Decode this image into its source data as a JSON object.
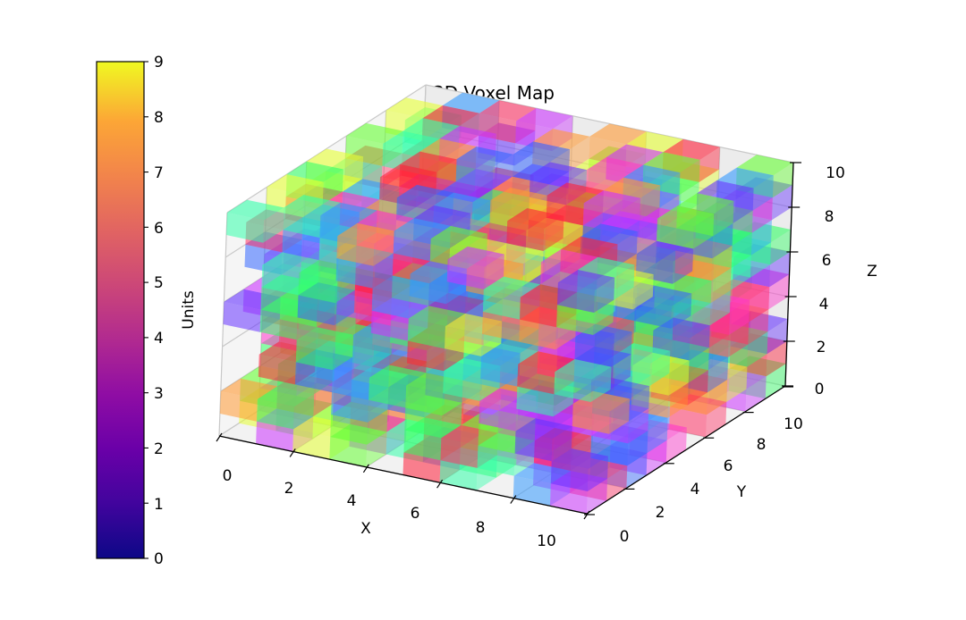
{
  "chart_data": {
    "type": "3d-voxel",
    "title": "3D Voxel Map",
    "xlabel": "X",
    "ylabel": "Y",
    "zlabel": "Z",
    "xlim": [
      0,
      10
    ],
    "ylim": [
      0,
      10
    ],
    "zlim": [
      0,
      10
    ],
    "xticks": [
      "0",
      "2",
      "4",
      "6",
      "8",
      "10"
    ],
    "yticks": [
      "0",
      "2",
      "4",
      "6",
      "8",
      "10"
    ],
    "zticks": [
      "0",
      "2",
      "4",
      "6",
      "8",
      "10"
    ],
    "grid_size": [
      10,
      10,
      10
    ],
    "voxel_alpha": 0.6,
    "voxel_colors": "random hsv-like per voxel (red, green, blue, magenta, yellow, orange, cyan)",
    "colorbar": {
      "label": "Units",
      "cmap": "plasma",
      "range": [
        0,
        9
      ],
      "ticks": [
        "0",
        "1",
        "2",
        "3",
        "4",
        "5",
        "6",
        "7",
        "8",
        "9"
      ],
      "position": "left"
    },
    "grid": true
  },
  "palette": [
    "#ff1f3a",
    "#33ff66",
    "#66ff33",
    "#3366ff",
    "#ff33cc",
    "#cc33ff",
    "#e6ff33",
    "#ff9933",
    "#3399ff",
    "#33ffaa",
    "#6633ff",
    "#ff3366"
  ]
}
